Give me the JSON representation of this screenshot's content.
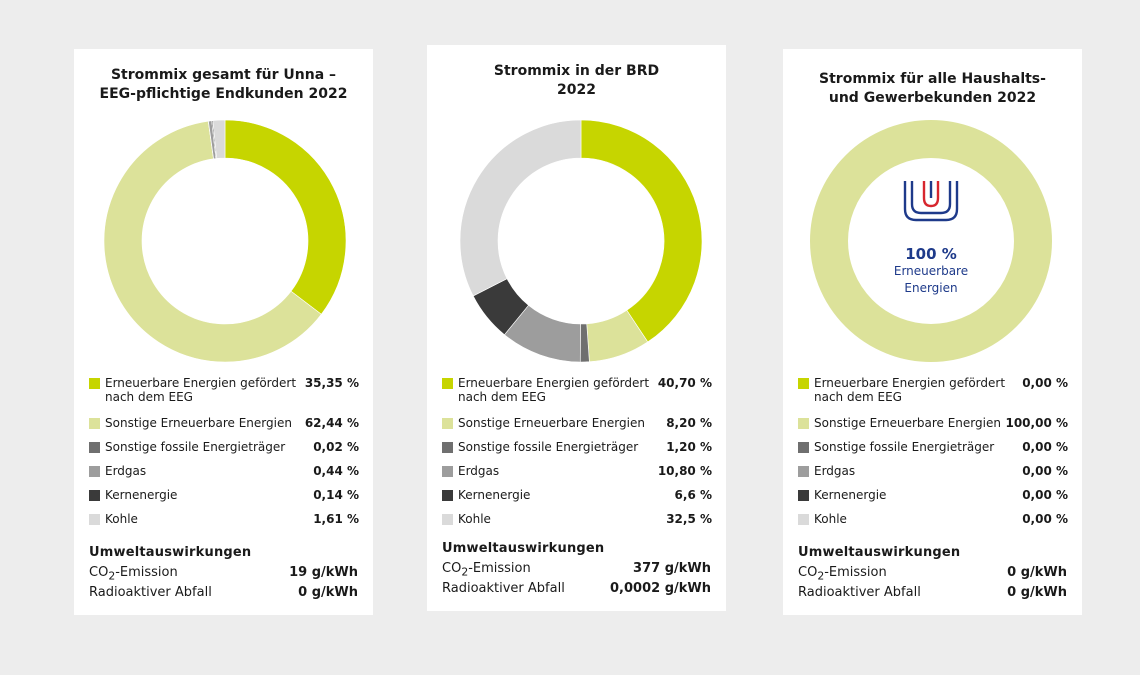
{
  "colors": {
    "eeg": "#c6d500",
    "sonstige_ee": "#dce29a",
    "fossil": "#6f6f6f",
    "erdgas": "#9d9d9d",
    "kern": "#3a3a3a",
    "kohle": "#dadada",
    "logo_blue": "#1e3a8a",
    "logo_red": "#d7262e"
  },
  "chart_data": [
    {
      "type": "pie",
      "title_line1": "Strommix gesamt für Unna –",
      "title_line2": "EEG-pflichtige Endkunden 2022",
      "categories": [
        "Erneuerbare Energien gefördert nach dem EEG",
        "Sonstige Erneuerbare Energien",
        "Sonstige fossile Energieträger",
        "Erdgas",
        "Kernenergie",
        "Kohle"
      ],
      "values": [
        35.35,
        62.44,
        0.02,
        0.44,
        0.14,
        1.61
      ],
      "value_labels": [
        "35,35 %",
        "62,44 %",
        "0,02 %",
        "0,44 %",
        "0,14 %",
        "1,61 %"
      ],
      "env_title": "Umweltauswirkungen",
      "co2_value": "19 g/kWh",
      "waste_label": "Radioaktiver Abfall",
      "waste_value": "0 g/kWh"
    },
    {
      "type": "pie",
      "title_line1": "Strommix in der BRD",
      "title_line2": "2022",
      "categories": [
        "Erneuerbare Energien gefördert nach dem EEG",
        "Sonstige Erneuerbare Energien",
        "Sonstige fossile Energieträger",
        "Erdgas",
        "Kernenergie",
        "Kohle"
      ],
      "values": [
        40.7,
        8.2,
        1.2,
        10.8,
        6.6,
        32.5
      ],
      "value_labels": [
        "40,70 %",
        "8,20 %",
        "1,20 %",
        "10,80 %",
        "6,6 %",
        "32,5 %"
      ],
      "env_title": "Umweltauswirkungen",
      "co2_value": "377 g/kWh",
      "waste_label": "Radioaktiver Abfall",
      "waste_value": "0,0002 g/kWh"
    },
    {
      "type": "pie",
      "title_line1": "Strommix für alle Haushalts-",
      "title_line2": "und Gewerbekunden 2022",
      "categories": [
        "Erneuerbare Energien gefördert nach dem EEG",
        "Sonstige Erneuerbare Energien",
        "Sonstige fossile Energieträger",
        "Erdgas",
        "Kernenergie",
        "Kohle"
      ],
      "values": [
        0,
        100,
        0,
        0,
        0,
        0
      ],
      "value_labels": [
        "0,00 %",
        "100,00 %",
        "0,00 %",
        "0,00 %",
        "0,00 %",
        "0,00 %"
      ],
      "env_title": "Umweltauswirkungen",
      "co2_value": "0 g/kWh",
      "waste_label": "Radioaktiver Abfall",
      "waste_value": "0 g/kWh",
      "center_percent": "100 %",
      "center_line1": "Erneuerbare",
      "center_line2": "Energien",
      "center_icon": "stadtwerke-unna-logo"
    }
  ],
  "co2_prefix": "CO",
  "co2_sub": "2",
  "co2_suffix": "-Emission"
}
